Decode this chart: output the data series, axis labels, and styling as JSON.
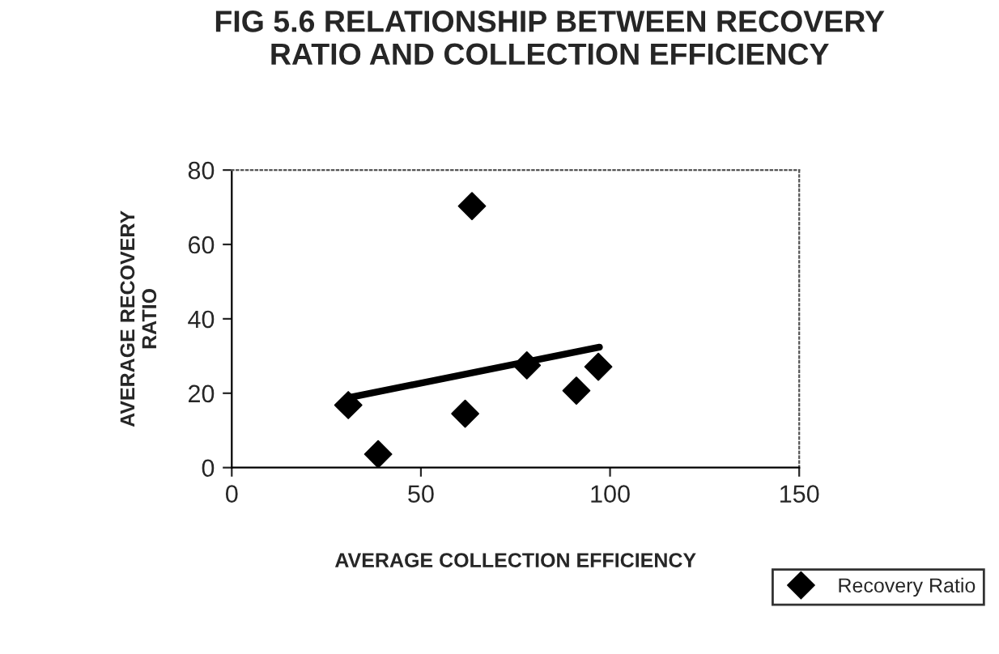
{
  "chart_data": {
    "type": "scatter",
    "title": "FIG 5.6 RELATIONSHIP BETWEEN RECOVERY\nRATIO AND COLLECTION EFFICIENCY",
    "xlabel": "AVERAGE COLLECTION EFFICIENCY",
    "ylabel": "AVERAGE RECOVERY\nRATIO",
    "series": [
      {
        "name": "Recovery Ratio",
        "color": "#000000",
        "marker": "diamond",
        "x": [
          30.8,
          38.7,
          61.7,
          63.5,
          78.0,
          91.1,
          96.9
        ],
        "values": [
          16.8,
          3.6,
          14.5,
          70.3,
          27.5,
          20.7,
          27.1
        ]
      },
      {
        "type": "line",
        "color": "#000000",
        "marker": "none",
        "line_style": "solid",
        "x": [
          30.8,
          97.2
        ],
        "values": [
          18.8,
          32.4
        ]
      }
    ],
    "xlim": [
      0,
      150
    ],
    "xticks": [
      0,
      50,
      100,
      150
    ],
    "ylim": [
      0,
      80
    ],
    "yticks": [
      0,
      20,
      40,
      60,
      80
    ],
    "grid": false,
    "legend": "bottom right"
  }
}
